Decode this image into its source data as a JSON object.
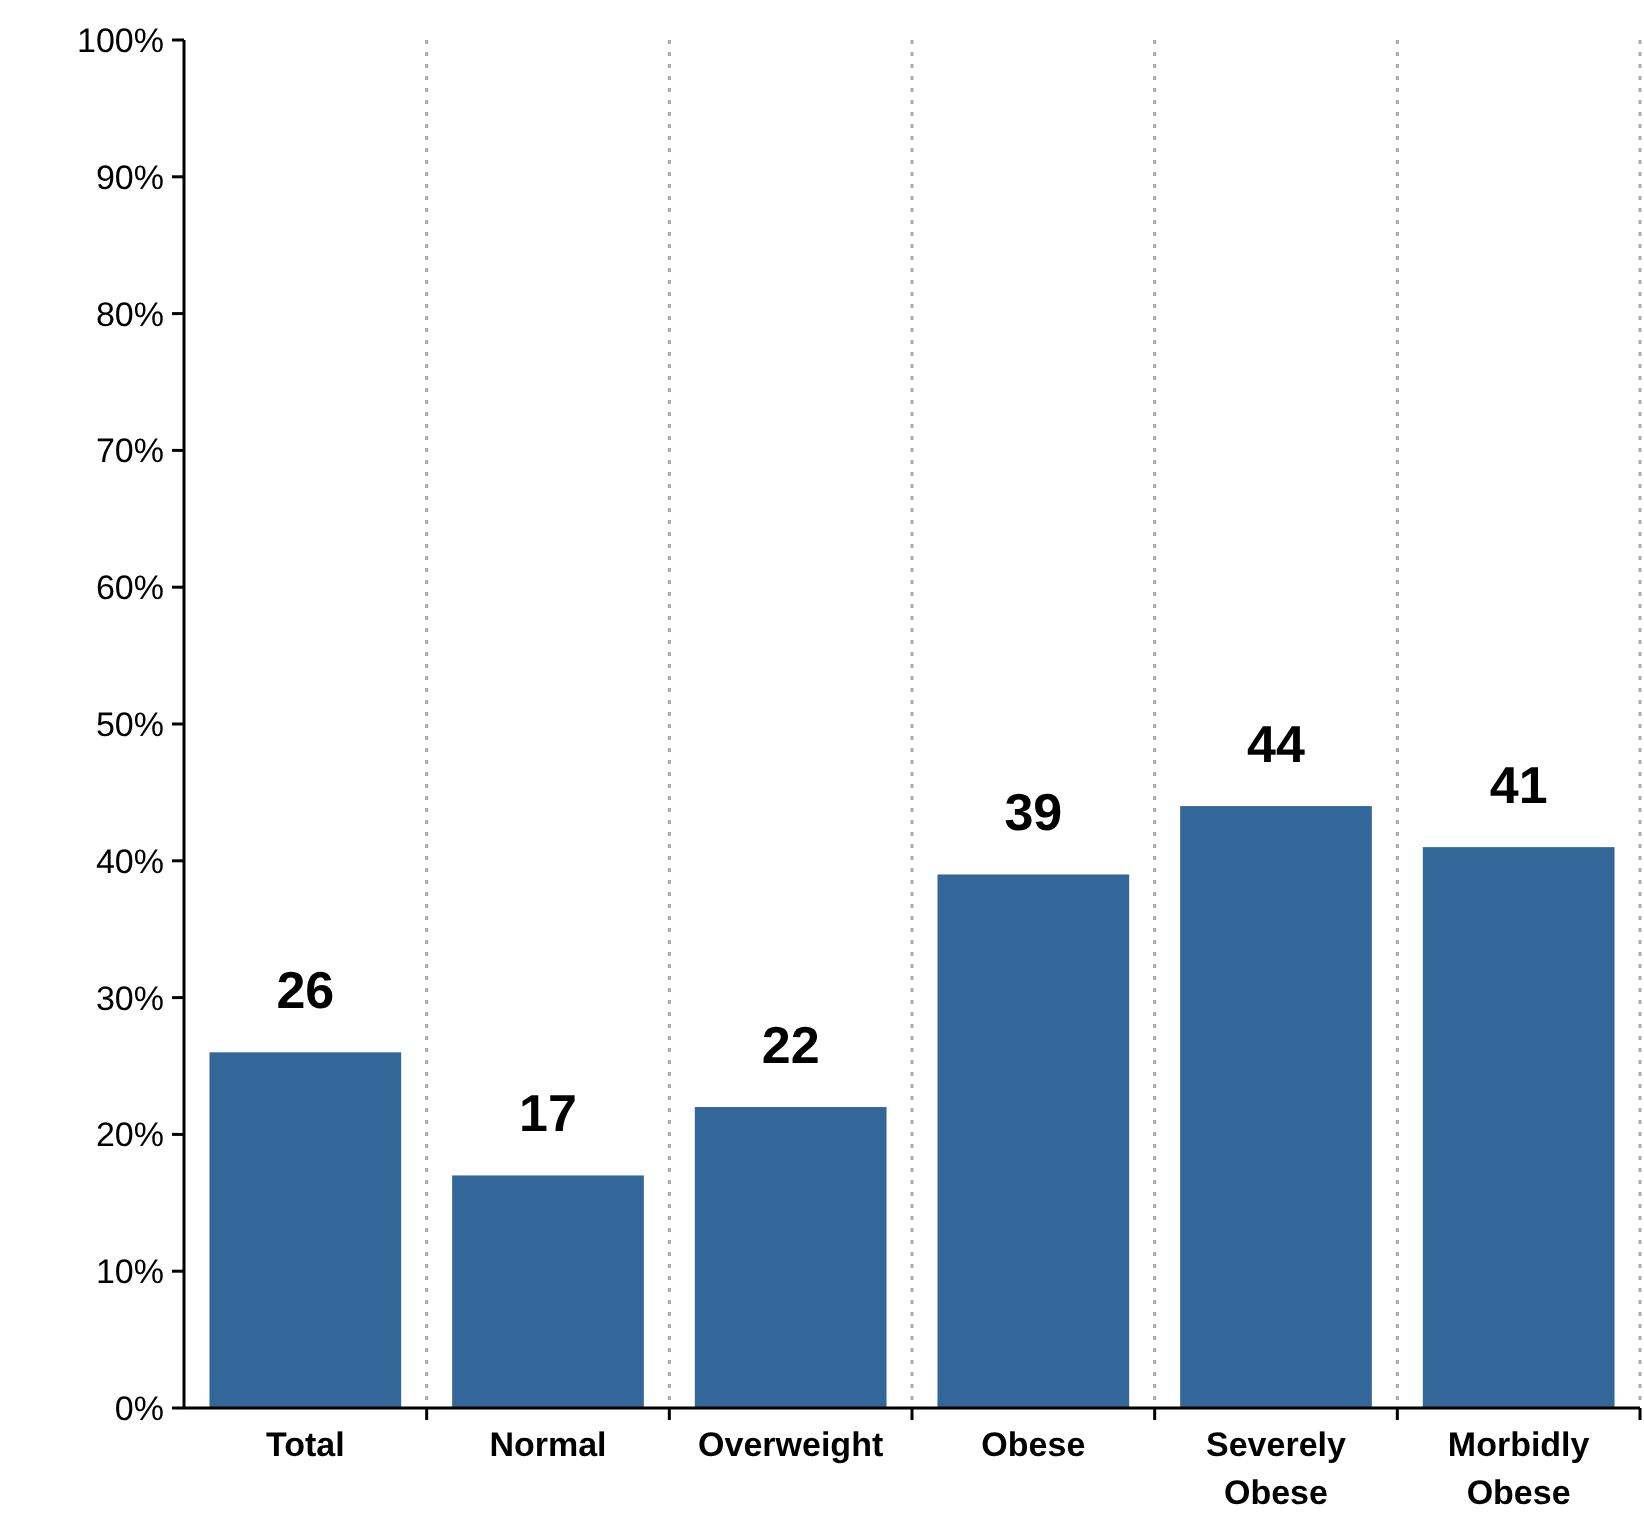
{
  "chart_data": {
    "type": "bar",
    "categories": [
      "Total",
      "Normal",
      "Overweight",
      "Obese",
      "Severely Obese",
      "Morbidly Obese"
    ],
    "values": [
      26,
      17,
      22,
      39,
      44,
      41
    ],
    "color": "#336699",
    "ylim": [
      0,
      100
    ],
    "yticks": [
      {
        "value": 0,
        "label": "0%"
      },
      {
        "value": 10,
        "label": "10%"
      },
      {
        "value": 20,
        "label": "20%"
      },
      {
        "value": 30,
        "label": "30%"
      },
      {
        "value": 40,
        "label": "40%"
      },
      {
        "value": 50,
        "label": "50%"
      },
      {
        "value": 60,
        "label": "60%"
      },
      {
        "value": 70,
        "label": "70%"
      },
      {
        "value": 80,
        "label": "80%"
      },
      {
        "value": 90,
        "label": "90%"
      },
      {
        "value": 100,
        "label": "100%"
      }
    ],
    "grid": "x",
    "data_labels": true
  }
}
